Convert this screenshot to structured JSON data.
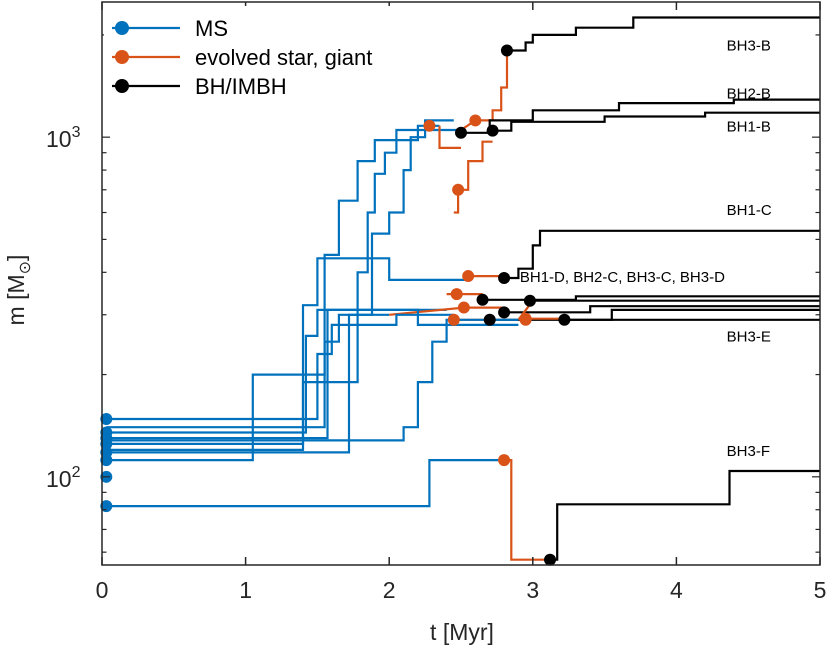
{
  "chart_data": {
    "type": "line",
    "xlabel": "t [Myr]",
    "ylabel": "m [M⊙]",
    "ylabel_main": "m [M",
    "ylabel_sub": "⊙",
    "ylabel_close": "]",
    "xlim": [
      0,
      5
    ],
    "ylim": [
      55,
      2500
    ],
    "yscale": "log",
    "grid": false,
    "legend_placement": "top-left",
    "xticks": [
      {
        "value": 0,
        "label": "0"
      },
      {
        "value": 1,
        "label": "1"
      },
      {
        "value": 2,
        "label": "2"
      },
      {
        "value": 3,
        "label": "3"
      },
      {
        "value": 4,
        "label": "4"
      },
      {
        "value": 5,
        "label": "5"
      }
    ],
    "yticks": [
      {
        "value": 100,
        "base": "10",
        "exp": "2"
      },
      {
        "value": 1000,
        "base": "10",
        "exp": "3"
      }
    ],
    "colors": {
      "ms": "#0072BD",
      "giant": "#D95319",
      "bh": "#000000",
      "axis": "#262626"
    },
    "legend": [
      {
        "label": "MS",
        "color": "#0072BD"
      },
      {
        "label": "evolved star, giant",
        "color": "#D95319"
      },
      {
        "label": "BH/IMBH",
        "color": "#000000"
      }
    ],
    "annotations": [
      {
        "text": "BH3-B",
        "x": 4.35,
        "y": 1800
      },
      {
        "text": "BH2-B",
        "x": 4.35,
        "y": 1300
      },
      {
        "text": "BH1-B",
        "x": 4.35,
        "y": 1040
      },
      {
        "text": "BH1-C",
        "x": 4.35,
        "y": 590
      },
      {
        "text": "BH1-D, BH2-C, BH3-C, BH3-D",
        "x": 2.91,
        "y": 375
      },
      {
        "text": "BH3-E",
        "x": 4.35,
        "y": 250
      },
      {
        "text": "BH3-F",
        "x": 4.35,
        "y": 115
      }
    ],
    "series": [
      {
        "name": "BH3-B",
        "ms": [
          [
            0.03,
            120
          ],
          [
            1.4,
            120
          ],
          [
            1.4,
            190
          ],
          [
            1.78,
            190
          ],
          [
            1.78,
            400
          ],
          [
            1.85,
            400
          ],
          [
            1.85,
            600
          ],
          [
            1.9,
            600
          ],
          [
            1.9,
            780
          ],
          [
            1.97,
            780
          ],
          [
            1.97,
            900
          ],
          [
            2.05,
            900
          ],
          [
            2.05,
            1050
          ],
          [
            2.5,
            1050
          ]
        ],
        "giant_start": 2.6,
        "giant": [
          [
            2.5,
            1050
          ],
          [
            2.6,
            1120
          ],
          [
            2.72,
            1120
          ],
          [
            2.72,
            1200
          ],
          [
            2.78,
            1200
          ],
          [
            2.78,
            1400
          ],
          [
            2.82,
            1400
          ],
          [
            2.82,
            1800
          ]
        ],
        "bh_start": 2.82,
        "bh": [
          [
            2.82,
            1800
          ],
          [
            2.95,
            1800
          ],
          [
            2.95,
            1900
          ],
          [
            3.0,
            1900
          ],
          [
            3.0,
            2000
          ],
          [
            3.3,
            2000
          ],
          [
            3.3,
            2100
          ],
          [
            3.7,
            2100
          ],
          [
            3.7,
            2250
          ],
          [
            5.0,
            2250
          ]
        ]
      },
      {
        "name": "BH2-B",
        "ms": [
          [
            0.03,
            112
          ],
          [
            1.05,
            112
          ],
          [
            1.05,
            200
          ],
          [
            1.55,
            200
          ],
          [
            1.55,
            450
          ],
          [
            1.65,
            450
          ],
          [
            1.65,
            650
          ],
          [
            1.78,
            650
          ],
          [
            1.78,
            850
          ],
          [
            1.9,
            850
          ],
          [
            1.9,
            980
          ],
          [
            2.2,
            980
          ],
          [
            2.2,
            1080
          ],
          [
            2.35,
            1080
          ]
        ],
        "giant_start": 2.28,
        "giant": [
          [
            2.35,
            1080
          ],
          [
            2.35,
            930
          ],
          [
            2.5,
            930
          ]
        ],
        "bh_start": 2.5,
        "bh": [
          [
            2.5,
            1030
          ],
          [
            2.7,
            1030
          ],
          [
            2.7,
            1120
          ],
          [
            3.0,
            1120
          ],
          [
            3.0,
            1200
          ],
          [
            3.6,
            1200
          ],
          [
            3.6,
            1260
          ],
          [
            4.4,
            1260
          ],
          [
            4.4,
            1290
          ],
          [
            5.0,
            1290
          ]
        ]
      },
      {
        "name": "BH1-B",
        "ms": [
          [
            0.03,
            118
          ],
          [
            1.72,
            118
          ],
          [
            1.72,
            300
          ],
          [
            1.88,
            300
          ],
          [
            1.88,
            520
          ],
          [
            2.0,
            520
          ],
          [
            2.0,
            600
          ],
          [
            2.1,
            600
          ],
          [
            2.1,
            800
          ],
          [
            2.15,
            800
          ],
          [
            2.15,
            1000
          ],
          [
            2.25,
            1000
          ],
          [
            2.25,
            1120
          ],
          [
            2.45,
            1120
          ]
        ],
        "giant_start": 2.48,
        "giant": [
          [
            2.45,
            600
          ],
          [
            2.48,
            600
          ],
          [
            2.48,
            700
          ],
          [
            2.55,
            700
          ],
          [
            2.55,
            850
          ],
          [
            2.65,
            850
          ],
          [
            2.65,
            970
          ],
          [
            2.72,
            970
          ]
        ],
        "bh_start": 2.72,
        "bh": [
          [
            2.72,
            1045
          ],
          [
            2.85,
            1045
          ],
          [
            2.85,
            1110
          ],
          [
            3.5,
            1110
          ],
          [
            3.5,
            1150
          ],
          [
            4.2,
            1150
          ],
          [
            4.2,
            1180
          ],
          [
            5.0,
            1180
          ]
        ]
      },
      {
        "name": "BH1-C",
        "ms": [
          [
            0.03,
            125
          ],
          [
            1.4,
            125
          ],
          [
            1.4,
            320
          ],
          [
            1.5,
            320
          ],
          [
            1.5,
            440
          ],
          [
            2.0,
            440
          ],
          [
            2.0,
            380
          ],
          [
            2.55,
            380
          ]
        ],
        "giant_start": 2.55,
        "giant": [
          [
            2.55,
            390
          ],
          [
            2.8,
            390
          ]
        ],
        "bh_start": 2.8,
        "bh": [
          [
            2.8,
            385
          ],
          [
            2.9,
            385
          ],
          [
            2.9,
            410
          ],
          [
            3.0,
            410
          ],
          [
            3.0,
            480
          ],
          [
            3.05,
            480
          ],
          [
            3.05,
            530
          ],
          [
            5.0,
            530
          ]
        ]
      },
      {
        "name": "BH1-D",
        "ms": [
          [
            0.03,
            130
          ],
          [
            1.57,
            130
          ],
          [
            1.57,
            310
          ],
          [
            2.4,
            310
          ]
        ],
        "giant_start": 2.47,
        "giant": [
          [
            2.4,
            345
          ],
          [
            2.65,
            345
          ]
        ],
        "bh_start": 2.65,
        "bh": [
          [
            2.65,
            332
          ],
          [
            3.3,
            332
          ],
          [
            3.3,
            340
          ],
          [
            5.0,
            340
          ]
        ]
      },
      {
        "name": "BH2-C",
        "ms": [
          [
            0.03,
            140
          ],
          [
            1.55,
            140
          ],
          [
            1.55,
            250
          ],
          [
            1.65,
            250
          ],
          [
            1.65,
            300
          ],
          [
            2.0,
            300
          ]
        ],
        "giant_start": 2.52,
        "giant": [
          [
            2.0,
            300
          ],
          [
            2.52,
            315
          ],
          [
            2.8,
            315
          ]
        ],
        "bh_start": 2.8,
        "bh": [
          [
            2.8,
            305
          ],
          [
            3.4,
            305
          ],
          [
            3.4,
            318
          ],
          [
            5.0,
            318
          ]
        ]
      },
      {
        "name": "BH3-C",
        "ms": [
          [
            0.03,
            148
          ],
          [
            1.5,
            148
          ],
          [
            1.5,
            230
          ],
          [
            1.6,
            230
          ],
          [
            1.6,
            280
          ],
          [
            2.05,
            280
          ],
          [
            2.05,
            300
          ],
          [
            2.45,
            300
          ]
        ],
        "giant_start": 2.45,
        "giant": [
          [
            2.45,
            290
          ],
          [
            2.7,
            290
          ]
        ],
        "bh_start": 2.7,
        "bh": [
          [
            2.7,
            290
          ],
          [
            3.55,
            290
          ],
          [
            3.55,
            310
          ],
          [
            5.0,
            310
          ]
        ]
      },
      {
        "name": "BH3-D",
        "ms": [
          [
            0.03,
            135
          ],
          [
            1.42,
            135
          ],
          [
            1.42,
            260
          ],
          [
            1.5,
            260
          ],
          [
            1.5,
            310
          ],
          [
            2.2,
            310
          ],
          [
            2.2,
            280
          ],
          [
            2.9,
            280
          ]
        ],
        "giant_start": 2.95,
        "giant": [
          [
            2.9,
            290
          ],
          [
            3.0,
            330
          ]
        ],
        "bh_start": 2.98,
        "bh": [
          [
            2.98,
            330
          ],
          [
            5.0,
            330
          ]
        ]
      },
      {
        "name": "BH3-E",
        "ms": [
          [
            0.03,
            128
          ],
          [
            2.1,
            128
          ],
          [
            2.1,
            140
          ],
          [
            2.2,
            140
          ],
          [
            2.2,
            190
          ],
          [
            2.3,
            190
          ],
          [
            2.3,
            250
          ],
          [
            2.4,
            250
          ],
          [
            2.4,
            290
          ],
          [
            2.9,
            290
          ]
        ],
        "giant_start": 2.95,
        "giant": [
          [
            2.9,
            292
          ],
          [
            3.22,
            292
          ]
        ],
        "bh_start": 3.22,
        "bh": [
          [
            3.22,
            290
          ],
          [
            5.0,
            290
          ]
        ]
      },
      {
        "name": "BH3-F",
        "ms": [
          [
            0.03,
            82
          ],
          [
            2.28,
            82
          ],
          [
            2.28,
            112
          ],
          [
            2.8,
            112
          ]
        ],
        "giant_start": 2.8,
        "giant": [
          [
            2.8,
            112
          ],
          [
            2.85,
            112
          ],
          [
            2.85,
            57
          ],
          [
            3.12,
            57
          ]
        ],
        "bh_start": 3.12,
        "bh": [
          [
            3.12,
            57
          ],
          [
            3.17,
            57
          ],
          [
            3.17,
            83
          ],
          [
            4.37,
            83
          ],
          [
            4.37,
            104
          ],
          [
            5.0,
            104
          ]
        ]
      }
    ],
    "ms_start_values": [
      82,
      100,
      112,
      118,
      125,
      130,
      135,
      148
    ]
  }
}
